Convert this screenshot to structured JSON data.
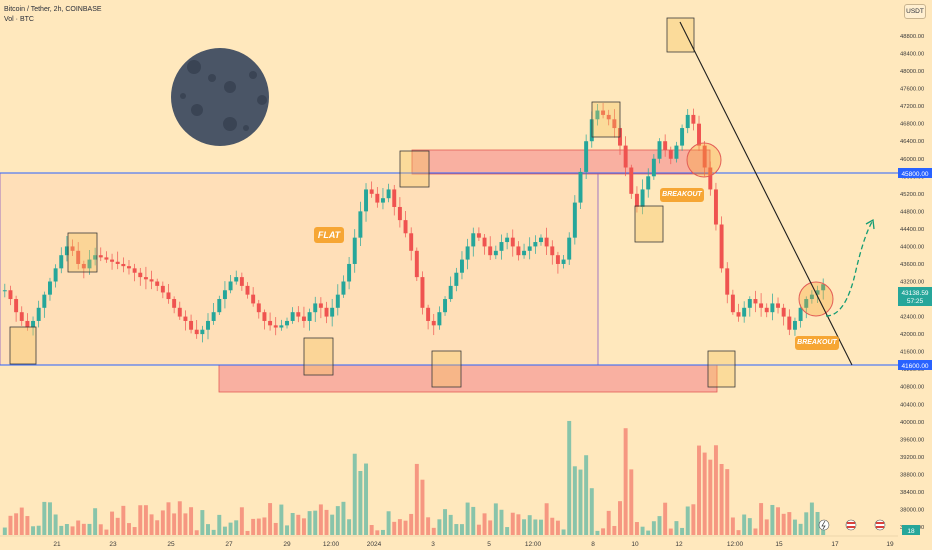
{
  "header": {
    "symbol": "Bitcoin / Tether, 2h, COINBASE",
    "volume": "Vol · BTC"
  },
  "currency": "USDT",
  "annotations": {
    "flat": "FLAT",
    "breakout_top": "BREAKOUT",
    "breakout_bottom": "BREAKOUT"
  },
  "price_axis": {
    "ticks": [
      "48800.00",
      "48400.00",
      "48000.00",
      "47600.00",
      "47200.00",
      "46800.00",
      "46400.00",
      "46000.00",
      "45600.00",
      "45200.00",
      "44800.00",
      "44400.00",
      "44000.00",
      "43600.00",
      "43200.00",
      "42800.00",
      "42400.00",
      "42000.00",
      "41600.00",
      "41200.00",
      "40800.00",
      "40400.00",
      "40000.00",
      "39600.00",
      "39200.00",
      "38800.00",
      "38400.00",
      "38000.00",
      "37600.00"
    ],
    "upper_level": "45800.00",
    "lower_level": "41600.00",
    "last_price": "43138.59",
    "countdown": "57:25",
    "volume_badge": "18"
  },
  "time_axis": [
    "21",
    "23",
    "25",
    "27",
    "29",
    "12:00",
    "2024",
    "3",
    "5",
    "12:00",
    "8",
    "10",
    "12",
    "12:00",
    "15",
    "17",
    "19"
  ],
  "colors": {
    "background": "#ffe8bd",
    "up": "#26a69a",
    "down": "#ef5350",
    "level": "#2962ff",
    "zone": "#f28b82",
    "moon": "#4a5566"
  },
  "chart_data": {
    "type": "candlestick",
    "title": "Bitcoin / Tether, 2h, COINBASE",
    "y_range": [
      37400,
      49200
    ],
    "levels": [
      45800,
      41600
    ],
    "last": 43138.59,
    "closes": [
      43000,
      42800,
      42500,
      42300,
      42150,
      42300,
      42600,
      42900,
      43200,
      43500,
      43800,
      44000,
      43900,
      43600,
      43500,
      43700,
      43800,
      43750,
      43700,
      43650,
      43600,
      43550,
      43500,
      43400,
      43300,
      43250,
      43200,
      43100,
      42950,
      42800,
      42600,
      42400,
      42300,
      42100,
      42000,
      42100,
      42300,
      42500,
      42800,
      43000,
      43200,
      43300,
      43100,
      42900,
      42700,
      42500,
      42300,
      42200,
      42150,
      42200,
      42300,
      42500,
      42400,
      42300,
      42500,
      42700,
      42600,
      42400,
      42600,
      42900,
      43200,
      43600,
      44200,
      44800,
      45300,
      45200,
      45000,
      45100,
      45300,
      44900,
      44600,
      44300,
      43900,
      43300,
      42600,
      42300,
      42200,
      42500,
      42800,
      43100,
      43400,
      43700,
      44000,
      44300,
      44200,
      44000,
      43800,
      43900,
      44100,
      44200,
      44000,
      43800,
      43900,
      44000,
      44100,
      44200,
      44000,
      43800,
      43600,
      43700,
      44200,
      45000,
      45700,
      46400,
      46900,
      47100,
      47000,
      46900,
      46700,
      46300,
      45800,
      45200,
      44900,
      45300,
      45600,
      46000,
      46400,
      46200,
      46000,
      46300,
      46700,
      47000,
      46800,
      46300,
      45800,
      45300,
      44500,
      43500,
      42900,
      42500,
      42400,
      42600,
      42800,
      42700,
      42600,
      42500,
      42700,
      42600,
      42400,
      42100,
      42300,
      42600,
      42800,
      42900,
      43000,
      43138
    ]
  }
}
